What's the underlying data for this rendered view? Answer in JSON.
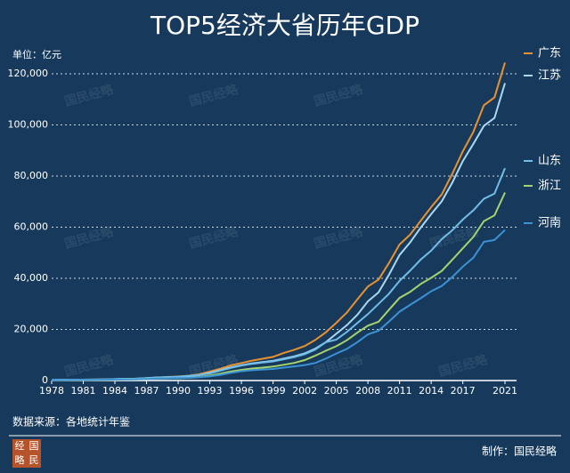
{
  "chart_data": {
    "type": "line",
    "title": "TOP5经济大省历年GDP",
    "unit_label": "单位：亿元",
    "source": "数据来源：各地统计年鉴",
    "credit": "制作：国民经略",
    "watermark": "国民经略",
    "logo": [
      "经",
      "国",
      "略",
      "民"
    ],
    "x": [
      1978,
      1979,
      1980,
      1981,
      1982,
      1983,
      1984,
      1985,
      1986,
      1987,
      1988,
      1989,
      1990,
      1991,
      1992,
      1993,
      1994,
      1995,
      1996,
      1997,
      1998,
      1999,
      2000,
      2001,
      2002,
      2003,
      2004,
      2005,
      2006,
      2007,
      2008,
      2009,
      2010,
      2011,
      2012,
      2013,
      2014,
      2015,
      2016,
      2017,
      2018,
      2019,
      2020,
      2021
    ],
    "xlim": [
      1978,
      2021
    ],
    "xticks": [
      1978,
      1981,
      1984,
      1987,
      1990,
      1993,
      1996,
      1999,
      2002,
      2005,
      2008,
      2011,
      2014,
      2017,
      2021
    ],
    "ylim": [
      0,
      120000
    ],
    "yticks": [
      0,
      {
        "value": 20000,
        "label": "20,000"
      },
      {
        "value": 40000,
        "label": "40,000"
      },
      {
        "value": 60000,
        "label": "60,000"
      },
      {
        "value": 80000,
        "label": "80,000"
      },
      {
        "value": 100000,
        "label": "100,000"
      },
      {
        "value": 120000,
        "label": "120,000"
      }
    ],
    "grid": true,
    "series": [
      {
        "name": "广东",
        "color": "#e8912f",
        "values": [
          186,
          209,
          250,
          291,
          340,
          368,
          459,
          578,
          667,
          846,
          1155,
          1381,
          1559,
          1893,
          2448,
          3469,
          4619,
          5933,
          6835,
          7775,
          8531,
          9251,
          10741,
          12039,
          13502,
          15845,
          18865,
          22557,
          26588,
          31777,
          36797,
          39483,
          46013,
          53210,
          57068,
          62475,
          67810,
          72813,
          80855,
          89705,
          97278,
          107671,
          110761,
          124370
        ]
      },
      {
        "name": "江苏",
        "color": "#a9d8f2",
        "values": [
          249,
          298,
          320,
          350,
          390,
          438,
          519,
          652,
          745,
          922,
          1209,
          1322,
          1417,
          1601,
          2136,
          2998,
          4057,
          5155,
          6004,
          6680,
          7200,
          7698,
          8554,
          9457,
          10607,
          12443,
          15004,
          18306,
          21645,
          25741,
          30982,
          34457,
          41425,
          49110,
          54058,
          59753,
          65088,
          70116,
          77388,
          85870,
          92595,
          99632,
          102719,
          116364
        ]
      },
      {
        "name": "山东",
        "color": "#6fbde8",
        "values": [
          225,
          252,
          292,
          346,
          396,
          459,
          582,
          681,
          743,
          893,
          1118,
          1294,
          1511,
          1810,
          2197,
          2780,
          3844,
          4953,
          5884,
          6537,
          7021,
          7493,
          8300,
          9200,
          10300,
          12100,
          15000,
          16000,
          19000,
          22500,
          26000,
          30000,
          34000,
          39000,
          43000,
          47300,
          50800,
          55300,
          58800,
          63000,
          66600,
          71100,
          73100,
          83100
        ]
      },
      {
        "name": "浙江",
        "color": "#a6d46c",
        "values": [
          124,
          157,
          180,
          204,
          234,
          258,
          323,
          429,
          502,
          607,
          770,
          849,
          905,
          1090,
          1376,
          1926,
          2689,
          3558,
          4189,
          4686,
          5053,
          5444,
          6141,
          6898,
          8004,
          9705,
          11649,
          13418,
          15743,
          18754,
          21463,
          22990,
          27722,
          32319,
          34665,
          37757,
          40173,
          42886,
          47251,
          51768,
          56197,
          62352,
          64613,
          73516
        ]
      },
      {
        "name": "河南",
        "color": "#3b92d4",
        "values": [
          163,
          190,
          229,
          249,
          263,
          328,
          370,
          451,
          502,
          610,
          749,
          850,
          935,
          1045,
          1280,
          1660,
          2217,
          2988,
          3635,
          4041,
          4308,
          4518,
          5053,
          5533,
          6035,
          6868,
          8554,
          10587,
          12362,
          15012,
          18018,
          19480,
          23092,
          26931,
          29599,
          32191,
          34938,
          37002,
          40472,
          44553,
          48056,
          54259,
          54997,
          58887
        ]
      }
    ]
  }
}
